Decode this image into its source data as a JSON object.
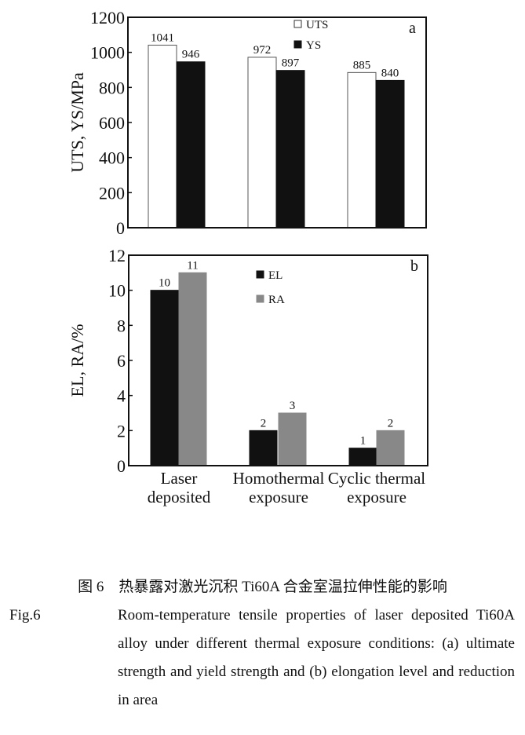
{
  "chart_data": [
    {
      "type": "bar",
      "panel_label": "a",
      "ylabel": "UTS, YS/MPa",
      "ylim": [
        0,
        1200
      ],
      "yticks": [
        0,
        200,
        400,
        600,
        800,
        1000,
        1200
      ],
      "categories": [
        "Laser deposited",
        "Homothermal exposure",
        "Cyclic thermal exposure"
      ],
      "legend_placement": "top-center",
      "series": [
        {
          "name": "UTS",
          "values": [
            1041,
            972,
            885
          ],
          "color": "#ffffff"
        },
        {
          "name": "YS",
          "values": [
            946,
            897,
            840
          ],
          "color": "#111111"
        }
      ]
    },
    {
      "type": "bar",
      "panel_label": "b",
      "ylabel": "EL, RA/%",
      "ylim": [
        0,
        12
      ],
      "yticks": [
        0,
        2,
        4,
        6,
        8,
        10,
        12
      ],
      "categories": [
        "Laser deposited",
        "Homothermal exposure",
        "Cyclic thermal exposure"
      ],
      "category_lines": [
        [
          "Laser",
          "deposited"
        ],
        [
          "Homothermal",
          "exposure"
        ],
        [
          "Cyclic thermal",
          "exposure"
        ]
      ],
      "legend_placement": "top-center",
      "series": [
        {
          "name": "EL",
          "values": [
            10,
            2,
            1
          ],
          "color": "#111111"
        },
        {
          "name": "RA",
          "values": [
            11,
            3,
            2
          ],
          "color": "#888888"
        }
      ]
    }
  ],
  "caption": {
    "cn": "图 6　热暴露对激光沉积 Ti60A 合金室温拉伸性能的影响",
    "en_label": "Fig.6",
    "en": "Room-temperature tensile properties of laser deposited Ti60A alloy under different thermal exposure conditions: (a) ultimate strength and yield strength and (b) elongation level and reduction in area"
  }
}
